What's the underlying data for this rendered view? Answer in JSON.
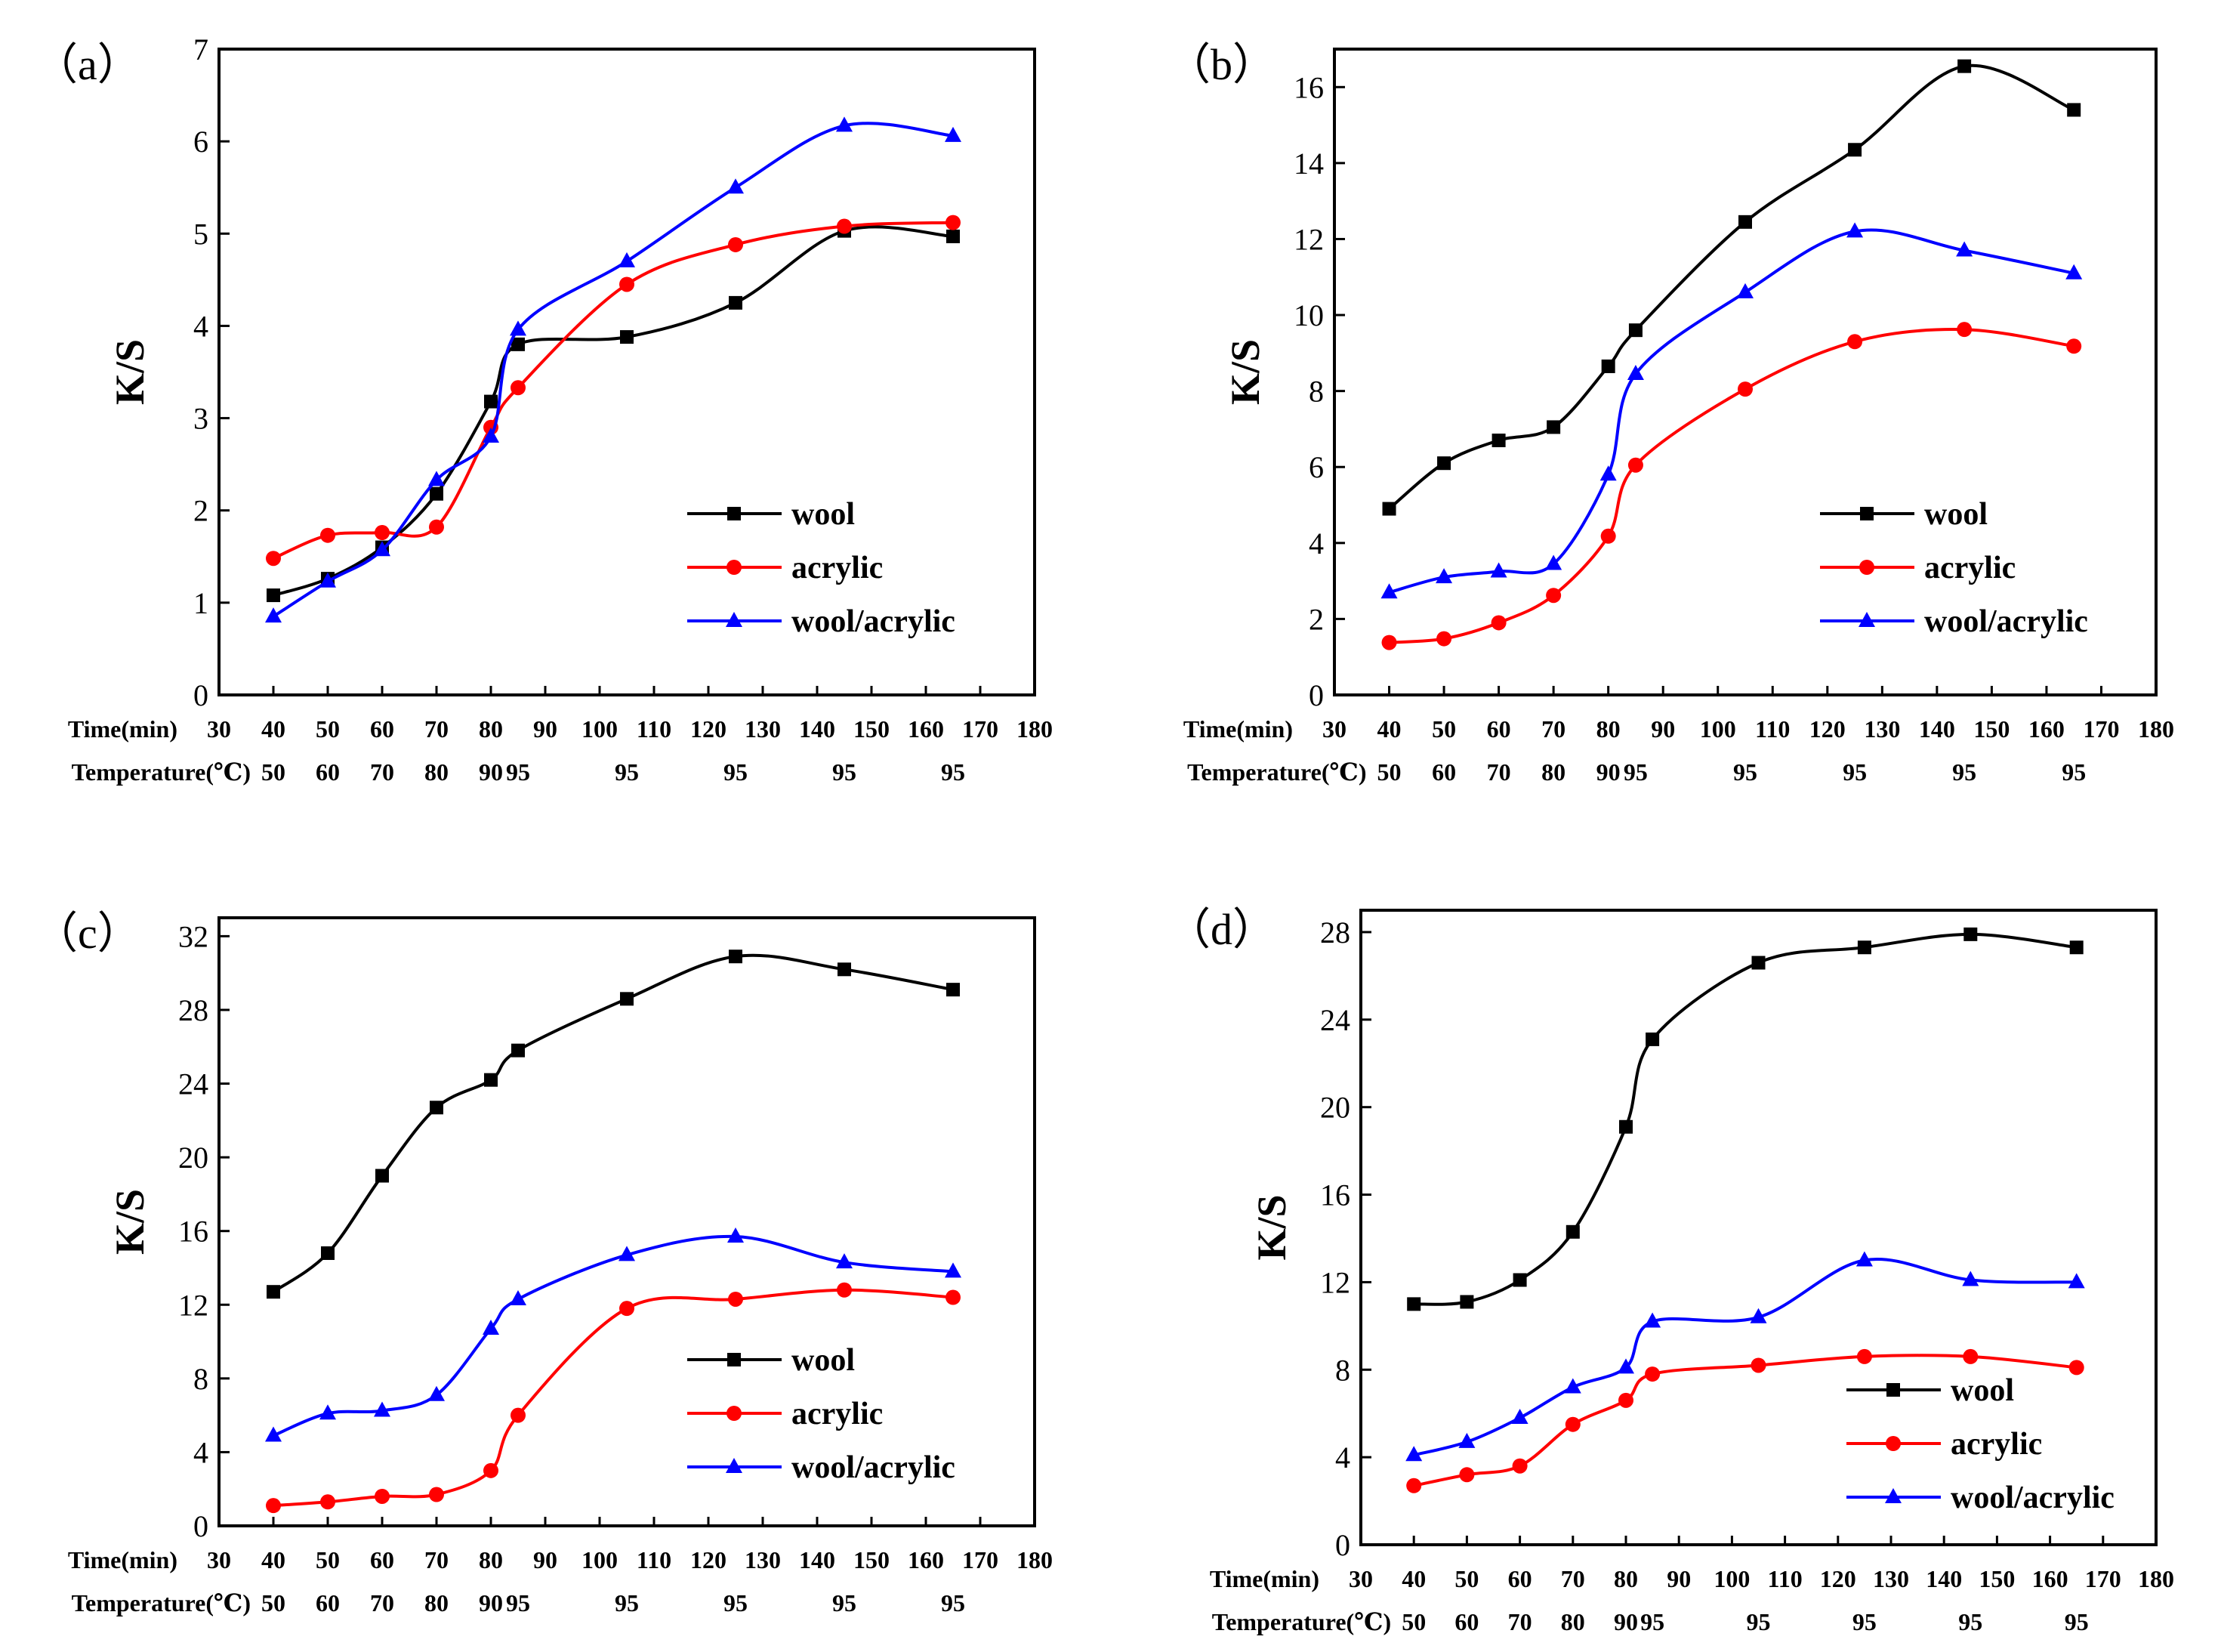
{
  "chart_data": [
    {
      "type": "line",
      "panel_label": "（a）",
      "ylabel": "K/S",
      "ylim": [
        0,
        7
      ],
      "yticks": [
        0,
        1,
        2,
        3,
        4,
        5,
        6,
        7
      ],
      "time_title": "Time(min)",
      "time_ticks": [
        30,
        40,
        50,
        60,
        70,
        80,
        90,
        100,
        110,
        120,
        130,
        140,
        150,
        160,
        170,
        180
      ],
      "temp_title": "Temperature(℃)",
      "temp_ticks": [
        {
          "x": 40,
          "t": "50"
        },
        {
          "x": 50,
          "t": "60"
        },
        {
          "x": 60,
          "t": "70"
        },
        {
          "x": 70,
          "t": "80"
        },
        {
          "x": 80,
          "t": "90"
        },
        {
          "x": 85,
          "t": "95"
        },
        {
          "x": 105,
          "t": "95"
        },
        {
          "x": 125,
          "t": "95"
        },
        {
          "x": 145,
          "t": "95"
        },
        {
          "x": 165,
          "t": "95"
        }
      ],
      "x": [
        40,
        50,
        60,
        70,
        80,
        85,
        105,
        125,
        145,
        165
      ],
      "series": [
        {
          "name": "wool",
          "color": "#000000",
          "marker": "square",
          "values": [
            1.08,
            1.26,
            1.6,
            2.18,
            3.18,
            3.8,
            3.88,
            4.25,
            5.03,
            4.97
          ]
        },
        {
          "name": "acrylic",
          "color": "#ff0000",
          "marker": "circle",
          "values": [
            1.48,
            1.73,
            1.76,
            1.82,
            2.9,
            3.33,
            4.45,
            4.88,
            5.08,
            5.12
          ]
        },
        {
          "name": "wool/acrylic",
          "color": "#0000ff",
          "marker": "triangle",
          "values": [
            0.85,
            1.23,
            1.57,
            2.33,
            2.8,
            3.96,
            4.7,
            5.5,
            6.17,
            6.06
          ]
        }
      ]
    },
    {
      "type": "line",
      "panel_label": "（b）",
      "ylabel": "K/S",
      "ylim": [
        0,
        17
      ],
      "yticks": [
        0,
        2,
        4,
        6,
        8,
        10,
        12,
        14,
        16
      ],
      "time_title": "Time(min)",
      "time_ticks": [
        30,
        40,
        50,
        60,
        70,
        80,
        90,
        100,
        110,
        120,
        130,
        140,
        150,
        160,
        170,
        180
      ],
      "temp_title": "Temperature(℃)",
      "temp_ticks": [
        {
          "x": 40,
          "t": "50"
        },
        {
          "x": 50,
          "t": "60"
        },
        {
          "x": 60,
          "t": "70"
        },
        {
          "x": 70,
          "t": "80"
        },
        {
          "x": 80,
          "t": "90"
        },
        {
          "x": 85,
          "t": "95"
        },
        {
          "x": 105,
          "t": "95"
        },
        {
          "x": 125,
          "t": "95"
        },
        {
          "x": 145,
          "t": "95"
        },
        {
          "x": 165,
          "t": "95"
        }
      ],
      "x": [
        40,
        50,
        60,
        70,
        80,
        85,
        105,
        125,
        145,
        165
      ],
      "series": [
        {
          "name": "wool",
          "color": "#000000",
          "marker": "square",
          "values": [
            4.9,
            6.1,
            6.7,
            7.05,
            8.65,
            9.6,
            12.45,
            14.35,
            16.55,
            15.4
          ]
        },
        {
          "name": "acrylic",
          "color": "#ff0000",
          "marker": "circle",
          "values": [
            1.38,
            1.48,
            1.9,
            2.62,
            4.18,
            6.05,
            8.05,
            9.3,
            9.62,
            9.18
          ]
        },
        {
          "name": "wool/acrylic",
          "color": "#0000ff",
          "marker": "triangle",
          "values": [
            2.7,
            3.1,
            3.25,
            3.45,
            5.8,
            8.45,
            10.6,
            12.2,
            11.7,
            11.1
          ]
        }
      ]
    },
    {
      "type": "line",
      "panel_label": "（c）",
      "ylabel": "K/S",
      "ylim": [
        0,
        33
      ],
      "yticks": [
        0,
        4,
        8,
        12,
        16,
        20,
        24,
        28,
        32
      ],
      "time_title": "Time(min)",
      "time_ticks": [
        30,
        40,
        50,
        60,
        70,
        80,
        90,
        100,
        110,
        120,
        130,
        140,
        150,
        160,
        170,
        180
      ],
      "temp_title": "Temperature(℃)",
      "temp_ticks": [
        {
          "x": 40,
          "t": "50"
        },
        {
          "x": 50,
          "t": "60"
        },
        {
          "x": 60,
          "t": "70"
        },
        {
          "x": 70,
          "t": "80"
        },
        {
          "x": 80,
          "t": "90"
        },
        {
          "x": 85,
          "t": "95"
        },
        {
          "x": 105,
          "t": "95"
        },
        {
          "x": 125,
          "t": "95"
        },
        {
          "x": 145,
          "t": "95"
        },
        {
          "x": 165,
          "t": "95"
        }
      ],
      "x": [
        40,
        50,
        60,
        70,
        80,
        85,
        105,
        125,
        145,
        165
      ],
      "series": [
        {
          "name": "wool",
          "color": "#000000",
          "marker": "square",
          "values": [
            12.7,
            14.8,
            19.0,
            22.7,
            24.2,
            25.8,
            28.6,
            30.9,
            30.2,
            29.1
          ]
        },
        {
          "name": "acrylic",
          "color": "#ff0000",
          "marker": "circle",
          "values": [
            1.1,
            1.3,
            1.6,
            1.7,
            3.0,
            6.0,
            11.8,
            12.3,
            12.8,
            12.4
          ]
        },
        {
          "name": "wool/acrylic",
          "color": "#0000ff",
          "marker": "triangle",
          "values": [
            4.9,
            6.1,
            6.25,
            7.1,
            10.7,
            12.3,
            14.7,
            15.7,
            14.3,
            13.8
          ]
        }
      ]
    },
    {
      "type": "line",
      "panel_label": "（d）",
      "ylabel": "K/S",
      "ylim": [
        0,
        29
      ],
      "yticks": [
        0,
        4,
        8,
        12,
        16,
        20,
        24,
        28
      ],
      "time_title": "Time(min)",
      "time_ticks": [
        30,
        40,
        50,
        60,
        70,
        80,
        90,
        100,
        110,
        120,
        130,
        140,
        150,
        160,
        170,
        180
      ],
      "temp_title": "Temperature(℃)",
      "temp_ticks": [
        {
          "x": 40,
          "t": "50"
        },
        {
          "x": 50,
          "t": "60"
        },
        {
          "x": 60,
          "t": "70"
        },
        {
          "x": 70,
          "t": "80"
        },
        {
          "x": 80,
          "t": "90"
        },
        {
          "x": 85,
          "t": "95"
        },
        {
          "x": 105,
          "t": "95"
        },
        {
          "x": 125,
          "t": "95"
        },
        {
          "x": 145,
          "t": "95"
        },
        {
          "x": 165,
          "t": "95"
        }
      ],
      "x": [
        40,
        50,
        60,
        70,
        80,
        85,
        105,
        125,
        145,
        165
      ],
      "series": [
        {
          "name": "wool",
          "color": "#000000",
          "marker": "square",
          "values": [
            11.0,
            11.1,
            12.1,
            14.3,
            19.1,
            23.1,
            26.6,
            27.3,
            27.9,
            27.3
          ]
        },
        {
          "name": "acrylic",
          "color": "#ff0000",
          "marker": "circle",
          "values": [
            2.7,
            3.2,
            3.6,
            5.5,
            6.6,
            7.8,
            8.2,
            8.6,
            8.6,
            8.1
          ]
        },
        {
          "name": "wool/acrylic",
          "color": "#0000ff",
          "marker": "triangle",
          "values": [
            4.1,
            4.7,
            5.8,
            7.2,
            8.1,
            10.2,
            10.4,
            13.0,
            12.1,
            12.0
          ]
        }
      ]
    }
  ]
}
